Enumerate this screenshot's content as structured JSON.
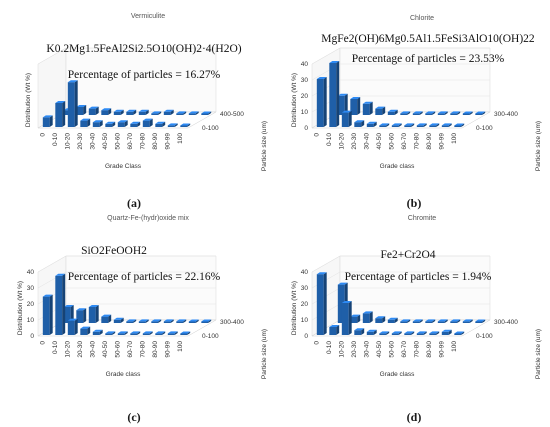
{
  "figure": {
    "captions": [
      "(a)",
      "(b)",
      "(c)",
      "(d)"
    ]
  },
  "chart_data": [
    {
      "type": "bar3d",
      "title": "Vermiculite",
      "formula": "K0.2Mg1.5FeAl2Si2.5O10(OH)2·4(H2O)",
      "annotation": "Percentage of particles = 16.27%",
      "xlabel": "Grade Class",
      "ylabel": "Distribution (Wt %)",
      "zlabel": "Particle size (um)",
      "categories": [
        "0",
        "0-10",
        "10-20",
        "20-30",
        "30-40",
        "40-50",
        "50-60",
        "60-70",
        "70-80",
        "80-90",
        "90-99",
        "100"
      ],
      "depth_labels": [
        "400-500",
        "0-100"
      ],
      "ylim": [
        0,
        40
      ],
      "yticks": [],
      "series": [
        {
          "values": [
            6,
            15,
            28,
            4,
            3,
            2,
            3,
            2,
            4,
            2,
            1,
            0
          ]
        },
        {
          "values": [
            3,
            5,
            4,
            3,
            2,
            2,
            2,
            1,
            2,
            1,
            1,
            0
          ]
        }
      ],
      "color": "#1f5fa8"
    },
    {
      "type": "bar3d",
      "title": "Chlorite",
      "formula": "MgFe2(OH)6Mg0.5Al1.5FeSi3AlO10(OH)22",
      "annotation": "Percentage of particles = 23.53%",
      "xlabel": "Grade class",
      "ylabel": "Distribution (Wt %)",
      "zlabel": "Particle size (um)",
      "categories": [
        "0",
        "0-10",
        "10-20",
        "20-30",
        "30-40",
        "40-50",
        "50-60",
        "60-70",
        "70-80",
        "80-90",
        "90-99",
        "100"
      ],
      "depth_labels": [
        "300-400",
        "0-100"
      ],
      "ylim": [
        0,
        40
      ],
      "yticks": [
        "0",
        "10",
        "20",
        "30",
        "40"
      ],
      "series": [
        {
          "values": [
            30,
            40,
            9,
            3,
            2,
            1,
            1,
            1,
            1,
            1,
            1,
            0
          ]
        },
        {
          "values": [
            12,
            10,
            7,
            4,
            2,
            1,
            1,
            1,
            1,
            1,
            0,
            0
          ]
        }
      ],
      "color": "#1f5fa8"
    },
    {
      "type": "bar3d",
      "title": "Quartz-Fe-(hydr)oxide mix",
      "formula": "SiO2FeOOH2",
      "annotation": "Percentage of particles = 22.16%",
      "xlabel": "Grade class",
      "ylabel": "Distribution (Wt %)",
      "zlabel": "Particle size (um)",
      "categories": [
        "0",
        "0-10",
        "10-20",
        "20-30",
        "30-40",
        "40-50",
        "50-60",
        "60-70",
        "70-80",
        "80-90",
        "90-99",
        "100"
      ],
      "depth_labels": [
        "300-400",
        "0-100"
      ],
      "ylim": [
        0,
        40
      ],
      "yticks": [
        "0",
        "10",
        "20",
        "30",
        "40"
      ],
      "series": [
        {
          "values": [
            24,
            37,
            9,
            4,
            2,
            1,
            1,
            1,
            1,
            1,
            1,
            0
          ]
        },
        {
          "values": [
            10,
            8,
            10,
            4,
            2,
            1,
            1,
            1,
            1,
            1,
            0,
            0
          ]
        }
      ],
      "color": "#1f5fa8"
    },
    {
      "type": "bar3d",
      "title": "Chromite",
      "formula": "Fe2+Cr2O4",
      "annotation": "Percentage of particles = 1.94%",
      "xlabel": "Grade class",
      "ylabel": "Distribution (Wt %)",
      "zlabel": "Particle size (um)",
      "categories": [
        "0",
        "0-10",
        "10-20",
        "20-30",
        "30-40",
        "40-50",
        "50-60",
        "60-70",
        "70-80",
        "80-90",
        "90-99",
        "100"
      ],
      "depth_labels": [
        "300-400",
        "0-100"
      ],
      "ylim": [
        0,
        40
      ],
      "yticks": [
        "0",
        "10",
        "20",
        "30",
        "40"
      ],
      "series": [
        {
          "values": [
            38,
            5,
            20,
            3,
            2,
            1,
            1,
            1,
            1,
            1,
            2,
            0
          ]
        },
        {
          "values": [
            24,
            4,
            6,
            3,
            2,
            1,
            1,
            1,
            1,
            1,
            1,
            0
          ]
        }
      ],
      "color": "#1f5fa8"
    }
  ]
}
